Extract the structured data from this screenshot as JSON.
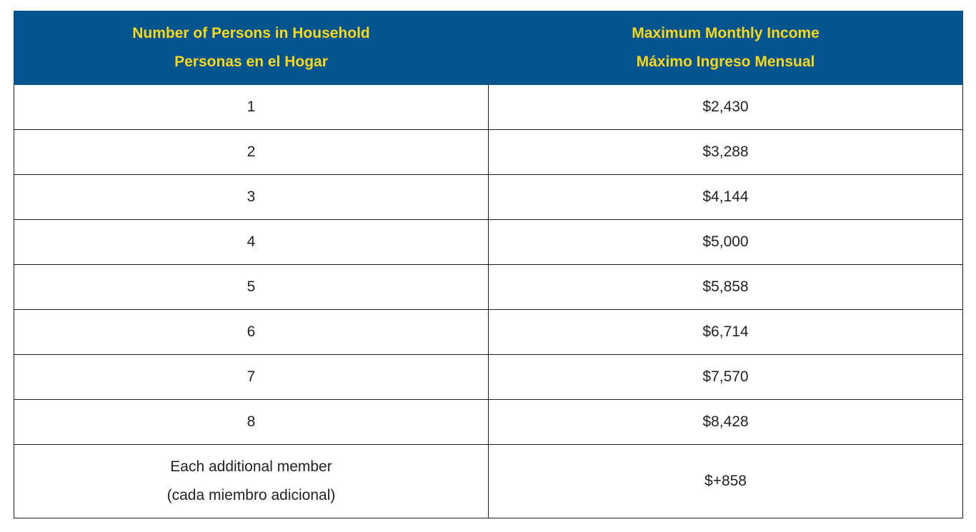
{
  "table": {
    "headers": [
      {
        "line1": "Number of Persons in Household",
        "line2": "Personas en el Hogar"
      },
      {
        "line1": "Maximum Monthly Income",
        "line2": "Máximo Ingreso Mensual"
      }
    ],
    "rows": [
      {
        "persons": "1",
        "income": "$2,430"
      },
      {
        "persons": "2",
        "income": "$3,288"
      },
      {
        "persons": "3",
        "income": "$4,144"
      },
      {
        "persons": "4",
        "income": "$5,000"
      },
      {
        "persons": "5",
        "income": "$5,858"
      },
      {
        "persons": "6",
        "income": "$6,714"
      },
      {
        "persons": "7",
        "income": "$7,570"
      },
      {
        "persons": "8",
        "income": "$8,428"
      }
    ],
    "additional": {
      "label_line1": "Each additional member",
      "label_line2": "(cada miembro adicional)",
      "income": "$+858"
    }
  },
  "colors": {
    "header_bg": "#045490",
    "header_text": "#f9d71c"
  }
}
